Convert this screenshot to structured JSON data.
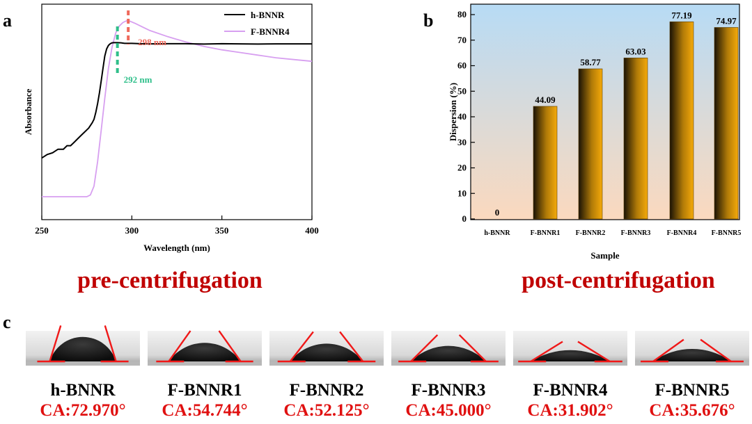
{
  "panels": {
    "a": "a",
    "b": "b",
    "c": "c"
  },
  "captions": {
    "pre": "pre-centrifugation",
    "post": "post-centrifugation"
  },
  "chart_data": [
    {
      "id": "a",
      "type": "line",
      "title": "",
      "xlabel": "Wavelength (nm)",
      "ylabel": "Absorbance",
      "xlim": [
        250,
        400
      ],
      "xticks": [
        250,
        300,
        350,
        400
      ],
      "yticks": [],
      "series": [
        {
          "name": "h-BNNR",
          "color": "#000000",
          "x": [
            250,
            253,
            256,
            259,
            262,
            264,
            266,
            268,
            270,
            272,
            274,
            276,
            278,
            279,
            280,
            281,
            282,
            283,
            284,
            285,
            286,
            287,
            288,
            289,
            290,
            292,
            294,
            296,
            300,
            305,
            310,
            320,
            330,
            340,
            350,
            360,
            370,
            380,
            390,
            400
          ],
          "y": [
            0.22,
            0.24,
            0.25,
            0.27,
            0.27,
            0.29,
            0.29,
            0.31,
            0.33,
            0.35,
            0.37,
            0.39,
            0.42,
            0.44,
            0.48,
            0.53,
            0.59,
            0.66,
            0.73,
            0.8,
            0.84,
            0.86,
            0.87,
            0.875,
            0.876,
            0.876,
            0.875,
            0.872,
            0.872,
            0.87,
            0.869,
            0.87,
            0.87,
            0.868,
            0.87,
            0.869,
            0.868,
            0.869,
            0.869,
            0.869
          ]
        },
        {
          "name": "F-BNNR4",
          "color": "#d79ff0",
          "x": [
            250,
            260,
            270,
            275,
            277,
            279,
            281,
            283,
            285,
            287,
            289,
            291,
            293,
            295,
            297,
            299,
            302,
            306,
            310,
            320,
            330,
            340,
            350,
            360,
            370,
            380,
            390,
            400
          ],
          "y": [
            0.0,
            0.0,
            0.0,
            0.0,
            0.01,
            0.06,
            0.2,
            0.38,
            0.56,
            0.73,
            0.85,
            0.93,
            0.97,
            0.99,
            1.0,
            0.998,
            0.985,
            0.965,
            0.945,
            0.91,
            0.88,
            0.855,
            0.835,
            0.82,
            0.805,
            0.79,
            0.78,
            0.77
          ]
        }
      ],
      "annotations": [
        {
          "text": "298 nm",
          "x": 298,
          "color": "#ef6a5c"
        },
        {
          "text": "292 nm",
          "x": 292,
          "color": "#2fbf8a"
        }
      ]
    },
    {
      "id": "b",
      "type": "bar",
      "title": "",
      "xlabel": "Sample",
      "ylabel": "Dispersion (%)",
      "ylim": [
        0,
        80
      ],
      "yticks": [
        0,
        10,
        20,
        30,
        40,
        50,
        60,
        70,
        80
      ],
      "categories": [
        "h-BNNR",
        "F-BNNR1",
        "F-BNNR2",
        "F-BNNR3",
        "F-BNNR4",
        "F-BNNR5"
      ],
      "values": [
        0,
        44.09,
        58.77,
        63.03,
        77.19,
        74.97
      ],
      "value_labels": [
        "0",
        "44.09",
        "58.77",
        "63.03",
        "77.19",
        "74.97"
      ],
      "bar_color": "#f5aa0a"
    }
  ],
  "droplets": [
    {
      "name": "h-BNNR",
      "ca": "CA:72.970°",
      "angle": 72.97
    },
    {
      "name": "F-BNNR1",
      "ca": "CA:54.744°",
      "angle": 54.744
    },
    {
      "name": "F-BNNR2",
      "ca": "CA:52.125°",
      "angle": 52.125
    },
    {
      "name": "F-BNNR3",
      "ca": "CA:45.000°",
      "angle": 45.0
    },
    {
      "name": "F-BNNR4",
      "ca": "CA:31.902°",
      "angle": 31.902
    },
    {
      "name": "F-BNNR5",
      "ca": "CA:35.676°",
      "angle": 35.676
    }
  ]
}
